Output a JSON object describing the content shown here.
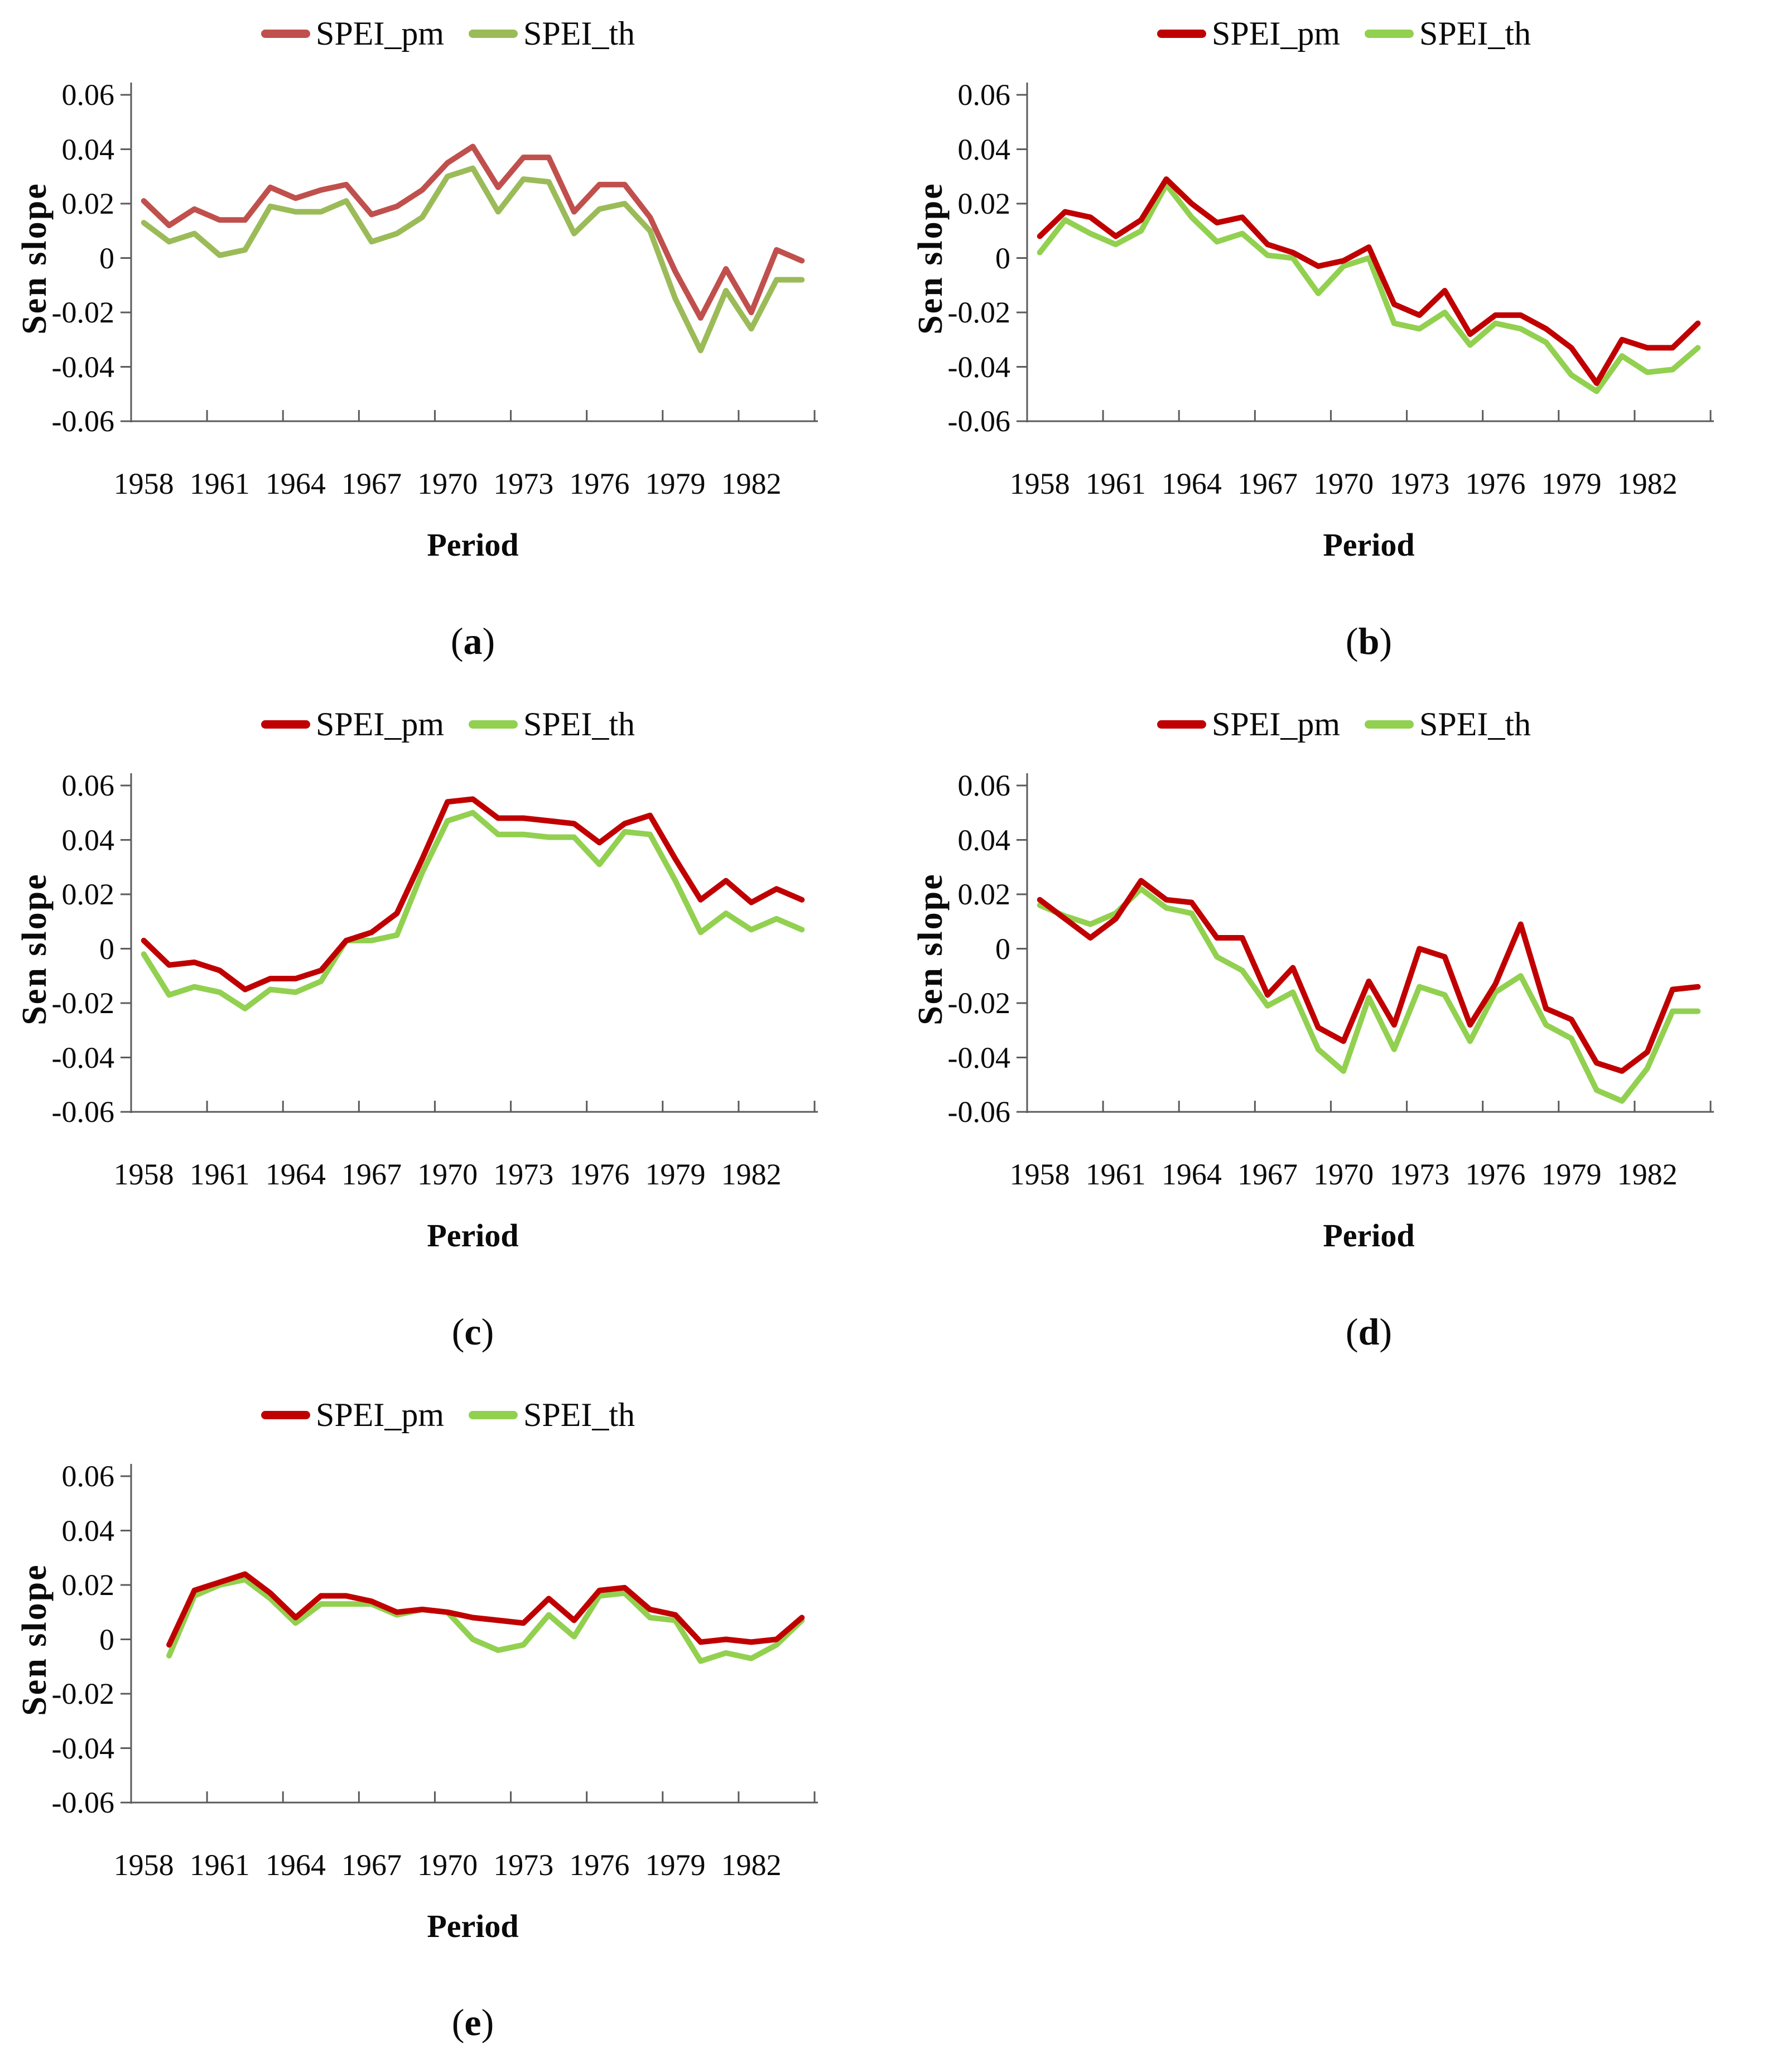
{
  "figure": {
    "background": "#ffffff",
    "axis_color": "#5b5b5b",
    "ylabel": "Sen slope",
    "xlabel": "Period",
    "yticks": [
      "0.06",
      "0.04",
      "0.02",
      "0",
      "-0.02",
      "-0.04",
      "-0.06"
    ],
    "xticks": [
      "1958",
      "1961",
      "1964",
      "1967",
      "1970",
      "1973",
      "1976",
      "1979",
      "1982"
    ],
    "legend": [
      {
        "label": "SPEI_pm"
      },
      {
        "label": "SPEI_th"
      }
    ]
  },
  "chart_data": [
    {
      "id": "a",
      "caption": "a",
      "type": "line",
      "xlabel": "Period",
      "ylabel": "Sen slope",
      "ylim": [
        -0.06,
        0.06
      ],
      "grid": "off",
      "legend_position": "top",
      "x": [
        1958,
        1959,
        1960,
        1961,
        1962,
        1963,
        1964,
        1965,
        1966,
        1967,
        1968,
        1969,
        1970,
        1971,
        1972,
        1973,
        1974,
        1975,
        1976,
        1977,
        1978,
        1979,
        1980,
        1981,
        1982,
        1983,
        1984
      ],
      "series": [
        {
          "name": "SPEI_pm",
          "color": "#C0504D",
          "values": [
            0.021,
            0.012,
            0.018,
            0.014,
            0.014,
            0.026,
            0.022,
            0.025,
            0.027,
            0.016,
            0.019,
            0.025,
            0.035,
            0.041,
            0.026,
            0.037,
            0.037,
            0.017,
            0.027,
            0.027,
            0.015,
            -0.005,
            -0.022,
            -0.004,
            -0.02,
            0.003,
            -0.001
          ]
        },
        {
          "name": "SPEI_th",
          "color": "#9BBB59",
          "values": [
            0.013,
            0.006,
            0.009,
            0.001,
            0.003,
            0.019,
            0.017,
            0.017,
            0.021,
            0.006,
            0.009,
            0.015,
            0.03,
            0.033,
            0.017,
            0.029,
            0.028,
            0.009,
            0.018,
            0.02,
            0.01,
            -0.015,
            -0.034,
            -0.012,
            -0.026,
            -0.008,
            -0.008
          ]
        }
      ]
    },
    {
      "id": "b",
      "caption": "b",
      "type": "line",
      "xlabel": "Period",
      "ylabel": "Sen slope",
      "ylim": [
        -0.06,
        0.06
      ],
      "grid": "off",
      "legend_position": "top",
      "x": [
        1958,
        1959,
        1960,
        1961,
        1962,
        1963,
        1964,
        1965,
        1966,
        1967,
        1968,
        1969,
        1970,
        1971,
        1972,
        1973,
        1974,
        1975,
        1976,
        1977,
        1978,
        1979,
        1980,
        1981,
        1982,
        1983,
        1984
      ],
      "series": [
        {
          "name": "SPEI_pm",
          "color": "#C00000",
          "values": [
            0.008,
            0.017,
            0.015,
            0.008,
            0.014,
            0.029,
            0.02,
            0.013,
            0.015,
            0.005,
            0.002,
            -0.003,
            -0.001,
            0.004,
            -0.017,
            -0.021,
            -0.012,
            -0.028,
            -0.021,
            -0.021,
            -0.026,
            -0.033,
            -0.046,
            -0.03,
            -0.033,
            -0.033,
            -0.024
          ]
        },
        {
          "name": "SPEI_th",
          "color": "#92D050",
          "values": [
            0.002,
            0.014,
            0.009,
            0.005,
            0.01,
            0.027,
            0.015,
            0.006,
            0.009,
            0.001,
            0,
            -0.013,
            -0.003,
            0,
            -0.024,
            -0.026,
            -0.02,
            -0.032,
            -0.024,
            -0.026,
            -0.031,
            -0.043,
            -0.049,
            -0.036,
            -0.042,
            -0.041,
            -0.033
          ]
        }
      ]
    },
    {
      "id": "c",
      "caption": "c",
      "type": "line",
      "xlabel": "Period",
      "ylabel": "Sen slope",
      "ylim": [
        -0.06,
        0.06
      ],
      "grid": "off",
      "legend_position": "top",
      "x": [
        1958,
        1959,
        1960,
        1961,
        1962,
        1963,
        1964,
        1965,
        1966,
        1967,
        1968,
        1969,
        1970,
        1971,
        1972,
        1973,
        1974,
        1975,
        1976,
        1977,
        1978,
        1979,
        1980,
        1981,
        1982,
        1983,
        1984
      ],
      "series": [
        {
          "name": "SPEI_pm",
          "color": "#C00000",
          "values": [
            0.003,
            -0.006,
            -0.005,
            -0.008,
            -0.015,
            -0.011,
            -0.011,
            -0.008,
            0.003,
            0.006,
            0.013,
            0.033,
            0.054,
            0.055,
            0.048,
            0.048,
            0.047,
            0.046,
            0.039,
            0.046,
            0.049,
            0.033,
            0.018,
            0.025,
            0.017,
            0.022,
            0.018
          ]
        },
        {
          "name": "SPEI_th",
          "color": "#92D050",
          "values": [
            -0.002,
            -0.017,
            -0.014,
            -0.016,
            -0.022,
            -0.015,
            -0.016,
            -0.012,
            0.003,
            0.003,
            0.005,
            0.028,
            0.047,
            0.05,
            0.042,
            0.042,
            0.041,
            0.041,
            0.031,
            0.043,
            0.042,
            0.025,
            0.006,
            0.013,
            0.007,
            0.011,
            0.007
          ]
        }
      ]
    },
    {
      "id": "d",
      "caption": "d",
      "type": "line",
      "xlabel": "Period",
      "ylabel": "Sen slope",
      "ylim": [
        -0.06,
        0.06
      ],
      "grid": "off",
      "legend_position": "top",
      "x": [
        1958,
        1959,
        1960,
        1961,
        1962,
        1963,
        1964,
        1965,
        1966,
        1967,
        1968,
        1969,
        1970,
        1971,
        1972,
        1973,
        1974,
        1975,
        1976,
        1977,
        1978,
        1979,
        1980,
        1981,
        1982,
        1983,
        1984
      ],
      "series": [
        {
          "name": "SPEI_pm",
          "color": "#C00000",
          "values": [
            0.018,
            0.011,
            0.004,
            0.011,
            0.025,
            0.018,
            0.017,
            0.004,
            0.004,
            -0.017,
            -0.007,
            -0.029,
            -0.034,
            -0.012,
            -0.028,
            0,
            -0.003,
            -0.028,
            -0.013,
            0.009,
            -0.022,
            -0.026,
            -0.042,
            -0.045,
            -0.038,
            -0.015,
            -0.014
          ]
        },
        {
          "name": "SPEI_th",
          "color": "#92D050",
          "values": [
            0.016,
            0.012,
            0.009,
            0.013,
            0.022,
            0.015,
            0.013,
            -0.003,
            -0.008,
            -0.021,
            -0.016,
            -0.037,
            -0.045,
            -0.018,
            -0.037,
            -0.014,
            -0.017,
            -0.034,
            -0.016,
            -0.01,
            -0.028,
            -0.033,
            -0.052,
            -0.056,
            -0.044,
            -0.023,
            -0.023
          ]
        }
      ]
    },
    {
      "id": "e",
      "caption": "e",
      "type": "line",
      "xlabel": "Period",
      "ylabel": "Sen slope",
      "ylim": [
        -0.06,
        0.06
      ],
      "grid": "off",
      "legend_position": "top",
      "x": [
        1959,
        1960,
        1961,
        1962,
        1963,
        1964,
        1965,
        1966,
        1967,
        1968,
        1969,
        1970,
        1971,
        1972,
        1973,
        1974,
        1975,
        1976,
        1977,
        1978,
        1979,
        1980,
        1981,
        1982,
        1983,
        1984
      ],
      "series": [
        {
          "name": "SPEI_pm",
          "color": "#C00000",
          "values": [
            -0.002,
            0.018,
            0.021,
            0.024,
            0.017,
            0.008,
            0.016,
            0.016,
            0.014,
            0.01,
            0.011,
            0.01,
            0.008,
            0.007,
            0.006,
            0.015,
            0.007,
            0.018,
            0.019,
            0.011,
            0.009,
            -0.001,
            0,
            -0.001,
            0,
            0.008
          ]
        },
        {
          "name": "SPEI_th",
          "color": "#92D050",
          "values": [
            -0.006,
            0.016,
            0.02,
            0.022,
            0.015,
            0.006,
            0.013,
            0.013,
            0.013,
            0.009,
            0.011,
            0.01,
            0,
            -0.004,
            -0.002,
            0.009,
            0.001,
            0.016,
            0.017,
            0.008,
            0.007,
            -0.008,
            -0.005,
            -0.007,
            -0.002,
            0.007
          ]
        }
      ]
    }
  ]
}
